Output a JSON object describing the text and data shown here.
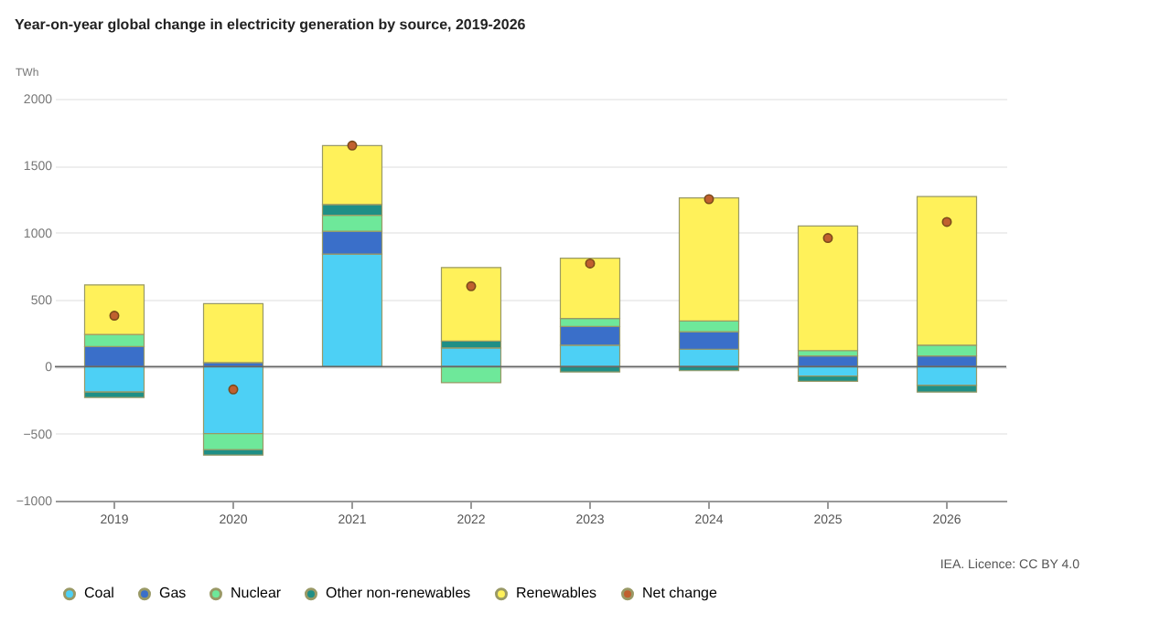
{
  "chart_data": {
    "type": "bar",
    "title": "Year-on-year global change in electricity generation by source, 2019-2026",
    "ylabel": "TWh",
    "stacked": true,
    "categories": [
      "2019",
      "2020",
      "2021",
      "2022",
      "2023",
      "2024",
      "2025",
      "2026"
    ],
    "series": [
      {
        "name": "Coal",
        "color": "#4dd0f5",
        "values": [
          -190,
          -500,
          840,
          140,
          160,
          130,
          -70,
          -140
        ]
      },
      {
        "name": "Gas",
        "color": "#3a6fc9",
        "values": [
          150,
          30,
          170,
          null,
          140,
          130,
          80,
          80
        ]
      },
      {
        "name": "Nuclear",
        "color": "#6ee89a",
        "values": [
          90,
          -120,
          120,
          -120,
          60,
          80,
          40,
          80
        ]
      },
      {
        "name": "Other non-renewables",
        "color": "#1f8f86",
        "values": [
          -40,
          -40,
          80,
          50,
          -40,
          -30,
          -40,
          -50
        ]
      },
      {
        "name": "Renewables",
        "color": "#fff15a",
        "values": [
          370,
          440,
          440,
          550,
          450,
          920,
          930,
          1110
        ]
      },
      {
        "name": "Net change",
        "color": "#c0602f",
        "type": "scatter",
        "marker": "circle",
        "values": [
          380,
          -170,
          1650,
          600,
          770,
          1250,
          960,
          1080
        ]
      }
    ],
    "ylim": [
      -1000,
      2000
    ],
    "yticks": [
      -1000,
      -500,
      0,
      500,
      1000,
      1500,
      2000
    ],
    "grid": "y",
    "legend": "bottom left",
    "annotations": [
      "IEA. Licence: CC BY 4.0"
    ]
  }
}
